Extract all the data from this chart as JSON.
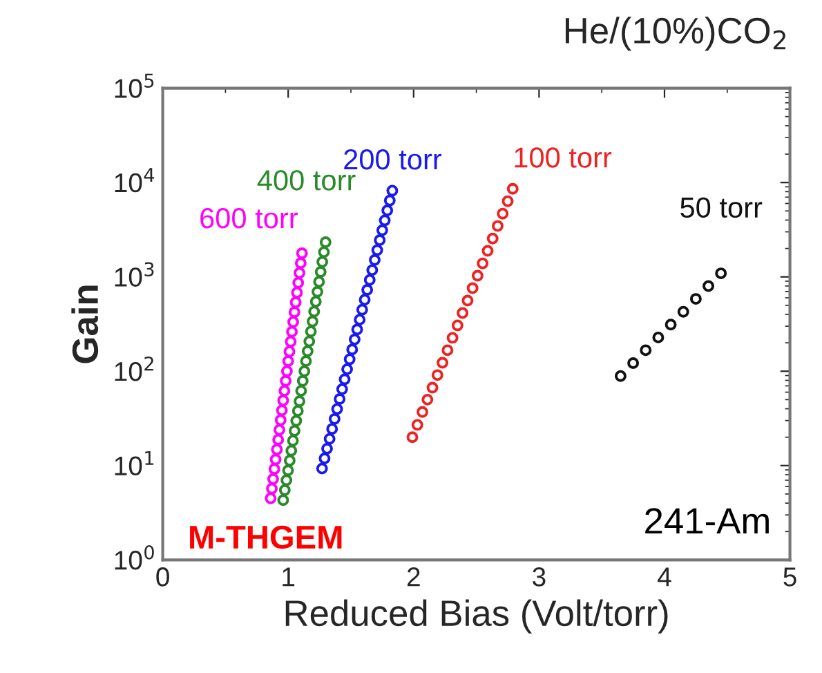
{
  "chart_data": {
    "type": "scatter",
    "title": "He/(10%)CO$_{2}$",
    "xlabel": "Reduced Bias (Volt/torr)",
    "ylabel": "Gain",
    "log": "y",
    "marker": "circle",
    "grid": false,
    "legend": false,
    "xlim": [
      0,
      5
    ],
    "xticks": [
      0,
      1,
      2,
      3,
      4,
      5
    ],
    "ylim": [
      1,
      100000
    ],
    "yticks": [
      {
        "value": 1,
        "label": "10$^{0}$"
      },
      {
        "value": 10,
        "label": "10$^{1}$"
      },
      {
        "value": 100,
        "label": "10$^{2}$"
      },
      {
        "value": 1000,
        "label": "10$^{3}$"
      },
      {
        "value": 10000,
        "label": "10$^{4}$"
      },
      {
        "value": 100000,
        "label": "10$^{5}$"
      }
    ],
    "annotations": [
      "241-Am",
      "M-THGEM"
    ],
    "series": [
      {
        "name": "600 torr",
        "color": "#ff00ff",
        "x": [
          0.86,
          0.87,
          0.88,
          0.89,
          0.9,
          0.91,
          0.92,
          0.93,
          0.94,
          0.95,
          0.96,
          0.97,
          0.98,
          0.99,
          1.0,
          1.01,
          1.02,
          1.03,
          1.04,
          1.05,
          1.06,
          1.07,
          1.08,
          1.09,
          1.1,
          1.11
        ],
        "values": [
          4.5,
          5.7,
          7.2,
          9.2,
          11.6,
          14.8,
          18.8,
          23.9,
          30.3,
          38.5,
          49,
          62,
          79,
          100,
          128,
          162,
          206,
          262,
          333,
          423,
          537,
          682,
          867,
          1100,
          1400,
          1780
        ]
      },
      {
        "name": "400 torr",
        "color": "#2a8a2a",
        "x": [
          0.96,
          0.973,
          0.986,
          0.999,
          1.012,
          1.025,
          1.038,
          1.051,
          1.064,
          1.077,
          1.09,
          1.103,
          1.116,
          1.129,
          1.142,
          1.155,
          1.168,
          1.181,
          1.194,
          1.207,
          1.22,
          1.233,
          1.246,
          1.259,
          1.272,
          1.285,
          1.298
        ],
        "values": [
          4.3,
          5.5,
          7.0,
          8.9,
          11.3,
          14.4,
          18.4,
          23.4,
          29.8,
          38,
          48,
          62,
          79,
          100,
          128,
          163,
          207,
          264,
          337,
          429,
          546,
          696,
          887,
          1130,
          1440,
          1830,
          2330
        ]
      },
      {
        "name": "200 torr",
        "color": "#1a1aee",
        "x": [
          1.27,
          1.29,
          1.31,
          1.33,
          1.35,
          1.37,
          1.39,
          1.41,
          1.43,
          1.45,
          1.47,
          1.49,
          1.51,
          1.53,
          1.55,
          1.57,
          1.59,
          1.61,
          1.63,
          1.65,
          1.67,
          1.69,
          1.71,
          1.73,
          1.75,
          1.77,
          1.79,
          1.81,
          1.83
        ],
        "values": [
          9.3,
          11.9,
          15.1,
          19.2,
          24.5,
          31.2,
          39.8,
          50.7,
          64.6,
          82,
          105,
          134,
          170,
          217,
          277,
          352,
          449,
          572,
          729,
          928,
          1180,
          1510,
          1920,
          2450,
          3120,
          3970,
          5060,
          6450,
          8200
        ]
      },
      {
        "name": "100 torr",
        "color": "#ee2222",
        "x": [
          1.99,
          2.03,
          2.07,
          2.11,
          2.15,
          2.19,
          2.23,
          2.27,
          2.31,
          2.35,
          2.39,
          2.43,
          2.47,
          2.51,
          2.55,
          2.59,
          2.63,
          2.67,
          2.71,
          2.75,
          2.79
        ],
        "values": [
          20,
          27,
          37,
          50,
          67,
          91,
          123,
          167,
          226,
          306,
          414,
          561,
          759,
          1030,
          1390,
          1890,
          2550,
          3460,
          4680,
          6340,
          8580
        ]
      },
      {
        "name": "50 torr",
        "color": "#111111",
        "x": [
          3.65,
          3.75,
          3.85,
          3.95,
          4.05,
          4.15,
          4.25,
          4.35,
          4.45
        ],
        "values": [
          89,
          122,
          167,
          228,
          312,
          427,
          584,
          799,
          1090
        ]
      }
    ]
  }
}
